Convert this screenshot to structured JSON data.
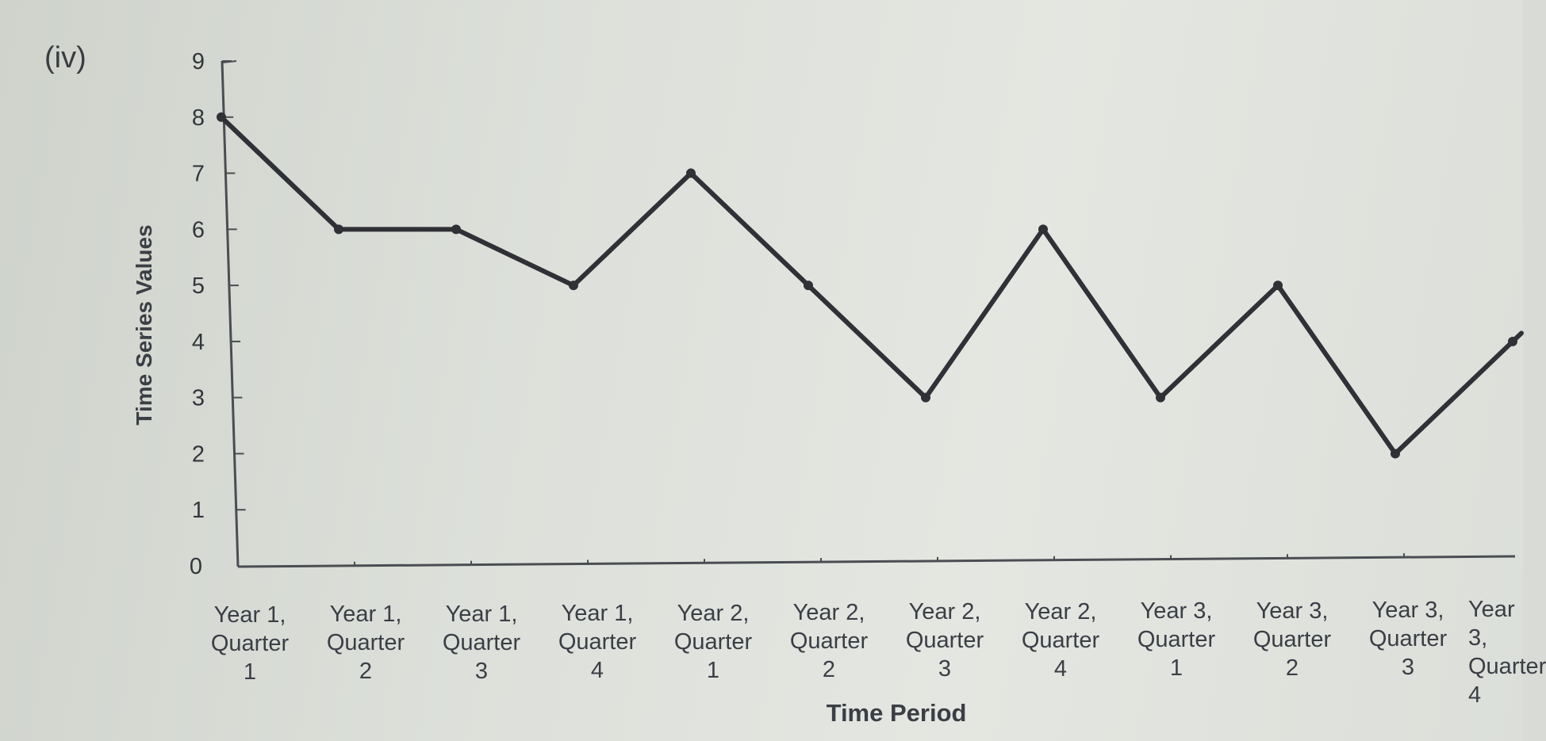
{
  "part_label": "(iv)",
  "chart_data": {
    "type": "line",
    "title": "",
    "xlabel": "Time Period",
    "ylabel": "Time Series Values",
    "ylim": [
      0,
      9
    ],
    "yticks": [
      "0",
      "1",
      "2",
      "3",
      "4",
      "5",
      "6",
      "7",
      "8",
      "9"
    ],
    "categories": [
      "Year 1, Quarter 1",
      "Year 1, Quarter 2",
      "Year 1, Quarter 3",
      "Year 1, Quarter 4",
      "Year 2, Quarter 1",
      "Year 2, Quarter 2",
      "Year 2, Quarter 3",
      "Year 2, Quarter 4",
      "Year 3, Quarter 1",
      "Year 3, Quarter 2",
      "Year 3, Quarter 3",
      "Year 3, Quarter 4"
    ],
    "tick_labels": [
      "Year 1,\nQuarter\n1",
      "Year 1,\nQuarter\n2",
      "Year 1,\nQuarter\n3",
      "Year 1,\nQuarter\n4",
      "Year 2,\nQuarter\n1",
      "Year 2,\nQuarter\n2",
      "Year 2,\nQuarter\n3",
      "Year 2,\nQuarter\n4",
      "Year 3,\nQuarter\n1",
      "Year 3,\nQuarter\n2",
      "Year 3,\nQuarter\n3",
      "Year 3,\nQuarter\n4"
    ],
    "series": [
      {
        "values": [
          8,
          6,
          6,
          5,
          7,
          5,
          3,
          6,
          3,
          5,
          2,
          4
        ],
        "color": "#2f3136"
      }
    ],
    "grid": false,
    "legend": "none"
  }
}
